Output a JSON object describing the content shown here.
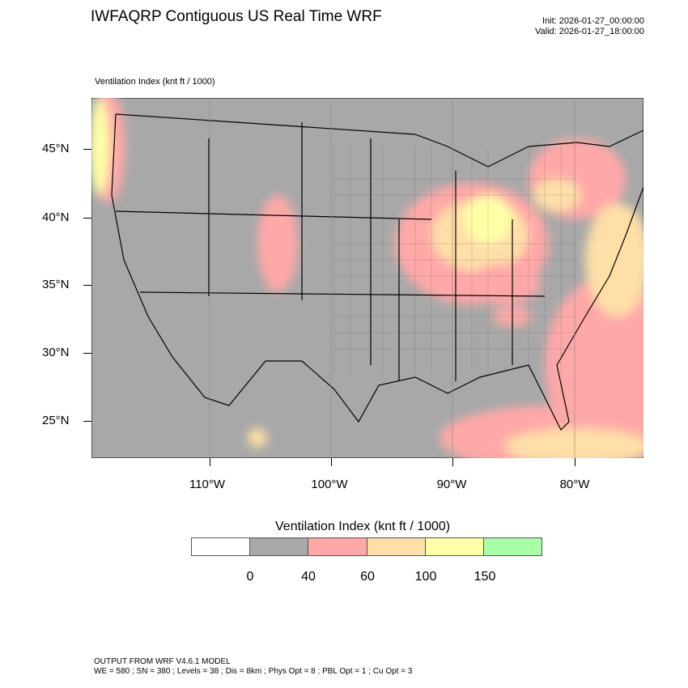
{
  "header": {
    "title": "IWFAQRP Contiguous US Real Time WRF",
    "init": "Init: 2026-01-27_00:00:00",
    "valid": "Valid: 2026-01-27_18:00:00",
    "field_label": "Ventilation Index   (knt ft / 1000)"
  },
  "map": {
    "lat_labels": [
      "45°N",
      "40°N",
      "35°N",
      "30°N",
      "25°N"
    ],
    "lon_labels": [
      "110°W",
      "100°W",
      "90°W",
      "80°W"
    ],
    "background_color": "#a8a8a8"
  },
  "colorbar": {
    "title": "Ventilation Index  (knt ft / 1000)",
    "colors": [
      "#ffffff",
      "#a8a8a8",
      "#ffa8a8",
      "#ffdfa8",
      "#ffffa8",
      "#a8ffa8"
    ],
    "labels": [
      "0",
      "40",
      "60",
      "100",
      "150"
    ]
  },
  "footer": {
    "line1": "OUTPUT FROM WRF V4.6.1 MODEL",
    "line2": "WE = 580 ; SN = 380 ; Levels = 38 ; Dis = 8km ; Phys Opt = 8 ; PBL Opt = 1 ; Cu Opt = 3"
  }
}
